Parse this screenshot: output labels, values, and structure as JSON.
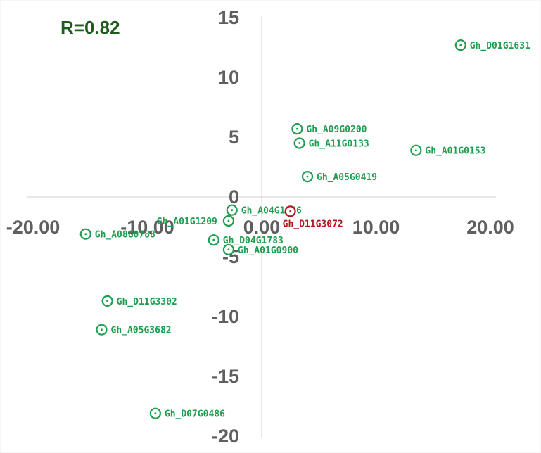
{
  "chart_data": {
    "type": "scatter",
    "annotation": "R=0.82",
    "xlim": [
      -20,
      20
    ],
    "ylim": [
      -20,
      15
    ],
    "x_ticks": [
      -20,
      -10,
      0,
      10,
      20
    ],
    "x_tick_labels": [
      "-20.00",
      "-10.00",
      "0.00",
      "10.00",
      "20.00"
    ],
    "y_ticks": [
      15,
      10,
      5,
      0,
      -5,
      -10,
      -15,
      -20
    ],
    "y_tick_labels": [
      "15",
      "10",
      "5",
      "0",
      "-5",
      "-10",
      "-15",
      "-20"
    ],
    "grid": false,
    "colors": {
      "default": "#1f9e50",
      "highlight": "#b3151d",
      "axis": "#d9d9d9",
      "annotation": "#1e5c1e"
    },
    "points": [
      {
        "label": "Gh_D01G1631",
        "x": 17.4,
        "y": 12.7,
        "color": "default"
      },
      {
        "label": "Gh_A09G0200",
        "x": 3.1,
        "y": 5.7,
        "color": "default"
      },
      {
        "label": "Gh_A11G0133",
        "x": 3.3,
        "y": 4.5,
        "color": "default"
      },
      {
        "label": "Gh_A01G0153",
        "x": 13.5,
        "y": 3.9,
        "color": "default"
      },
      {
        "label": "Gh_A05G0419",
        "x": 4.0,
        "y": 1.7,
        "color": "default"
      },
      {
        "label": "Gh_A04G1346",
        "x": -2.6,
        "y": -1.1,
        "color": "default"
      },
      {
        "label": "Gh_D11G3072",
        "x": 2.5,
        "y": -1.2,
        "color": "highlight"
      },
      {
        "label": "Gh_A01G1209",
        "x": -2.9,
        "y": -2.0,
        "color": "default"
      },
      {
        "label": "Gh_A08G0788",
        "x": -15.4,
        "y": -3.1,
        "color": "default"
      },
      {
        "label": "Gh_D04G1783",
        "x": -4.2,
        "y": -3.6,
        "color": "default"
      },
      {
        "label": "Gh_A01G0900",
        "x": -2.9,
        "y": -4.4,
        "color": "default"
      },
      {
        "label": "Gh_D11G3302",
        "x": -13.5,
        "y": -8.7,
        "color": "default"
      },
      {
        "label": "Gh_A05G3682",
        "x": -14.0,
        "y": -11.1,
        "color": "default"
      },
      {
        "label": "Gh_D07G0486",
        "x": -9.3,
        "y": -18.1,
        "color": "default"
      }
    ]
  }
}
